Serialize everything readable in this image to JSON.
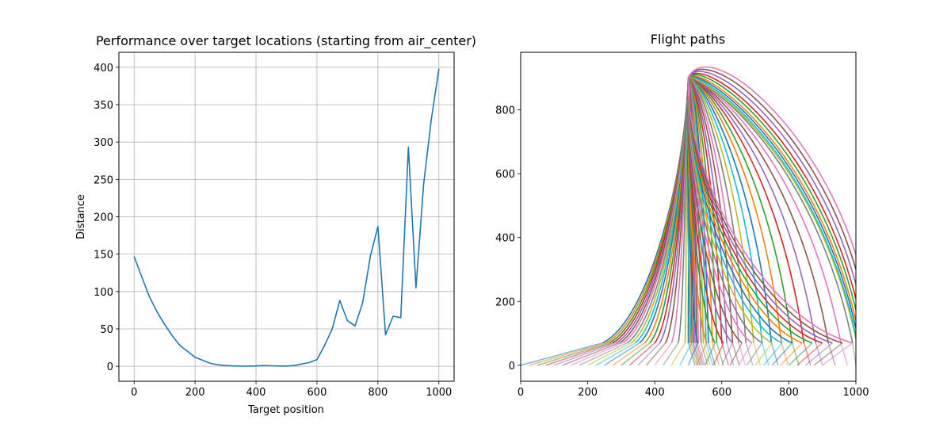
{
  "chart_data": [
    {
      "type": "line",
      "title": "Performance over target locations (starting from air_center)",
      "xlabel": "Target position",
      "ylabel": "Distance",
      "xlim": [
        -50,
        1050
      ],
      "ylim": [
        -20,
        420
      ],
      "xticks": [
        0,
        200,
        400,
        600,
        800,
        1000
      ],
      "yticks": [
        0,
        50,
        100,
        150,
        200,
        250,
        300,
        350,
        400
      ],
      "grid": true,
      "color": "#1f77b4",
      "x": [
        0,
        25,
        50,
        75,
        100,
        125,
        150,
        175,
        200,
        225,
        250,
        275,
        300,
        325,
        350,
        375,
        400,
        425,
        450,
        475,
        500,
        525,
        550,
        575,
        600,
        625,
        650,
        675,
        700,
        725,
        750,
        775,
        800,
        825,
        850,
        875,
        900,
        925,
        950,
        975,
        1000
      ],
      "y": [
        147,
        120,
        93,
        73,
        56,
        41,
        28,
        20,
        12,
        8,
        4,
        2,
        1,
        0.5,
        0.3,
        0.3,
        0.5,
        1,
        0.7,
        0.4,
        0.2,
        1,
        3,
        5,
        9,
        28,
        50,
        88,
        61,
        54,
        85,
        147,
        187,
        42,
        67,
        65,
        293,
        105,
        243,
        330,
        398
      ]
    },
    {
      "type": "line",
      "title": "Flight paths",
      "xlabel": "",
      "ylabel": "",
      "xlim": [
        0,
        1000
      ],
      "ylim": [
        -50,
        980
      ],
      "xticks": [
        0,
        200,
        400,
        600,
        800,
        1000
      ],
      "yticks": [
        0,
        200,
        400,
        600,
        800
      ],
      "grid": false,
      "launch_point": [
        500,
        900
      ],
      "colors": [
        "#1f77b4",
        "#ff7f0e",
        "#2ca02c",
        "#d62728",
        "#9467bd",
        "#8c564b",
        "#e377c2",
        "#7f7f7f",
        "#bcbd22",
        "#17becf"
      ],
      "series": [
        {
          "start": [
            0,
            0
          ],
          "join": [
            245,
            70
          ],
          "apex": 500,
          "end_x": 500
        },
        {
          "start": [
            25,
            0
          ],
          "join": [
            255,
            70
          ],
          "apex": 500,
          "end_x": 505
        },
        {
          "start": [
            50,
            0
          ],
          "join": [
            265,
            70
          ],
          "apex": 500,
          "end_x": 510
        },
        {
          "start": [
            75,
            0
          ],
          "join": [
            275,
            70
          ],
          "apex": 500,
          "end_x": 515
        },
        {
          "start": [
            100,
            0
          ],
          "join": [
            285,
            70
          ],
          "apex": 500,
          "end_x": 520
        },
        {
          "start": [
            125,
            0
          ],
          "join": [
            295,
            70
          ],
          "apex": 500,
          "end_x": 525
        },
        {
          "start": [
            150,
            0
          ],
          "join": [
            305,
            70
          ],
          "apex": 500,
          "end_x": 530
        },
        {
          "start": [
            175,
            0
          ],
          "join": [
            318,
            70
          ],
          "apex": 500,
          "end_x": 538
        },
        {
          "start": [
            200,
            0
          ],
          "join": [
            330,
            70
          ],
          "apex": 500,
          "end_x": 545
        },
        {
          "start": [
            225,
            0
          ],
          "join": [
            342,
            70
          ],
          "apex": 500,
          "end_x": 553
        },
        {
          "start": [
            250,
            0
          ],
          "join": [
            355,
            70
          ],
          "apex": 500,
          "end_x": 560
        },
        {
          "start": [
            275,
            0
          ],
          "join": [
            370,
            70
          ],
          "apex": 500,
          "end_x": 572
        },
        {
          "start": [
            300,
            0
          ],
          "join": [
            385,
            70
          ],
          "apex": 500,
          "end_x": 585
        },
        {
          "start": [
            325,
            0
          ],
          "join": [
            400,
            70
          ],
          "apex": 500,
          "end_x": 600
        },
        {
          "start": [
            350,
            0
          ],
          "join": [
            415,
            70
          ],
          "apex": 500,
          "end_x": 615
        },
        {
          "start": [
            375,
            0
          ],
          "join": [
            432,
            70
          ],
          "apex": 500,
          "end_x": 632
        },
        {
          "start": [
            400,
            0
          ],
          "join": [
            450,
            70
          ],
          "apex": 500,
          "end_x": 650
        },
        {
          "start": [
            425,
            0
          ],
          "join": [
            470,
            70
          ],
          "apex": 500,
          "end_x": 672
        },
        {
          "start": [
            450,
            0
          ],
          "join": [
            490,
            70
          ],
          "apex": 500,
          "end_x": 695
        },
        {
          "start": [
            475,
            0
          ],
          "join": [
            510,
            70
          ],
          "apex": 500,
          "end_x": 720
        },
        {
          "start": [
            500,
            0
          ],
          "join": [
            528,
            70
          ],
          "apex": 500,
          "end_x": 748
        },
        {
          "start": [
            525,
            0
          ],
          "join": [
            555,
            70
          ],
          "apex": 500,
          "end_x": 778
        },
        {
          "start": [
            550,
            0
          ],
          "join": [
            580,
            70
          ],
          "apex": 500,
          "end_x": 810
        },
        {
          "start": [
            575,
            0
          ],
          "join": [
            605,
            70
          ],
          "apex": 500,
          "end_x": 845
        },
        {
          "start": [
            600,
            0
          ],
          "join": [
            632,
            70
          ],
          "apex": 500,
          "end_x": 880
        },
        {
          "start": [
            625,
            0
          ],
          "join": [
            660,
            70
          ],
          "apex": 500,
          "end_x": 918
        },
        {
          "start": [
            650,
            0
          ],
          "join": [
            690,
            70
          ],
          "apex": 500,
          "end_x": 955
        },
        {
          "start": [
            675,
            0
          ],
          "join": [
            720,
            70
          ],
          "apex": 500,
          "end_x": 990
        },
        {
          "start": [
            700,
            0
          ],
          "join": [
            750,
            70
          ],
          "apex": 505,
          "end_x": 1000
        },
        {
          "start": [
            725,
            0
          ],
          "join": [
            780,
            70
          ],
          "apex": 510,
          "end_x": 1000
        },
        {
          "start": [
            750,
            0
          ],
          "join": [
            810,
            70
          ],
          "apex": 520,
          "end_x": 1000
        },
        {
          "start": [
            775,
            0
          ],
          "join": [
            840,
            70
          ],
          "apex": 530,
          "end_x": 1000
        },
        {
          "start": [
            800,
            0
          ],
          "join": [
            870,
            70
          ],
          "apex": 545,
          "end_x": 1000
        },
        {
          "start": [
            825,
            0
          ],
          "join": [
            900,
            70
          ],
          "apex": 560,
          "end_x": 1000
        },
        {
          "start": [
            850,
            0
          ],
          "join": [
            930,
            70
          ],
          "apex": 580,
          "end_x": 1000
        },
        {
          "start": [
            875,
            0
          ],
          "join": [
            960,
            70
          ],
          "apex": 600,
          "end_x": 1000
        },
        {
          "start": [
            900,
            0
          ],
          "join": [
            990,
            70
          ],
          "apex": 620,
          "end_x": 1000
        }
      ]
    }
  ]
}
